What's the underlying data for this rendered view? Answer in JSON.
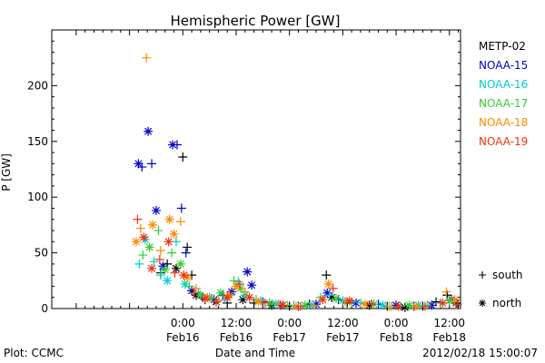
{
  "chart_data": {
    "type": "scatter",
    "title": "Hemispheric Power [GW]",
    "xlabel": "Date and Time",
    "ylabel": "P [GW]",
    "ylim": [
      0,
      250
    ],
    "yticks": [
      0,
      50,
      100,
      150,
      200
    ],
    "xlim_hours_from_feb15_0000": [
      -5.5,
      86.5
    ],
    "xticks": [
      {
        "hour": 24,
        "time": "0:00",
        "date": "Feb16"
      },
      {
        "hour": 36,
        "time": "12:00",
        "date": "Feb16"
      },
      {
        "hour": 48,
        "time": "0:00",
        "date": "Feb17"
      },
      {
        "hour": 60,
        "time": "12:00",
        "date": "Feb17"
      },
      {
        "hour": 72,
        "time": "0:00",
        "date": "Feb18"
      },
      {
        "hour": 84,
        "time": "12:00",
        "date": "Feb18"
      }
    ],
    "marker_legend": [
      {
        "symbol": "+",
        "label": "south"
      },
      {
        "symbol": "*",
        "label": "north"
      }
    ],
    "series": [
      {
        "name": "METP-02",
        "color": "#000000",
        "points": [
          {
            "x": 19.0,
            "y": 32,
            "m": "+"
          },
          {
            "x": 20.5,
            "y": 40,
            "m": "+"
          },
          {
            "x": 22.5,
            "y": 36,
            "m": "*"
          },
          {
            "x": 24.0,
            "y": 136,
            "m": "+"
          },
          {
            "x": 25.0,
            "y": 55,
            "m": "+"
          },
          {
            "x": 26.0,
            "y": 30,
            "m": "+"
          },
          {
            "x": 27.0,
            "y": 12,
            "m": "*"
          },
          {
            "x": 29.0,
            "y": 8,
            "m": "+"
          },
          {
            "x": 31.5,
            "y": 6,
            "m": "*"
          },
          {
            "x": 34.0,
            "y": 5,
            "m": "+"
          },
          {
            "x": 37.5,
            "y": 8,
            "m": "*"
          },
          {
            "x": 40.0,
            "y": 5,
            "m": "+"
          },
          {
            "x": 44.0,
            "y": 3,
            "m": "*"
          },
          {
            "x": 48.0,
            "y": 2,
            "m": "+"
          },
          {
            "x": 52.5,
            "y": 4,
            "m": "+"
          },
          {
            "x": 56.3,
            "y": 30,
            "m": "+"
          },
          {
            "x": 57.5,
            "y": 10,
            "m": "*"
          },
          {
            "x": 61.0,
            "y": 5,
            "m": "+"
          },
          {
            "x": 66.0,
            "y": 3,
            "m": "*"
          },
          {
            "x": 70.0,
            "y": 2,
            "m": "+"
          },
          {
            "x": 74.0,
            "y": 1,
            "m": "*"
          },
          {
            "x": 78.0,
            "y": 2,
            "m": "+"
          },
          {
            "x": 81.0,
            "y": 6,
            "m": "+"
          },
          {
            "x": 83.5,
            "y": 12,
            "m": "+"
          },
          {
            "x": 85.5,
            "y": 5,
            "m": "*"
          }
        ]
      },
      {
        "name": "NOAA-15",
        "color": "#0000cc",
        "points": [
          {
            "x": 14.0,
            "y": 130,
            "m": "*"
          },
          {
            "x": 14.8,
            "y": 127,
            "m": "+"
          },
          {
            "x": 16.2,
            "y": 159,
            "m": "*"
          },
          {
            "x": 17.0,
            "y": 130,
            "m": "+"
          },
          {
            "x": 18.0,
            "y": 88,
            "m": "*"
          },
          {
            "x": 19.5,
            "y": 38,
            "m": "*"
          },
          {
            "x": 21.7,
            "y": 147,
            "m": "*"
          },
          {
            "x": 22.7,
            "y": 147,
            "m": "+"
          },
          {
            "x": 23.7,
            "y": 90,
            "m": "+"
          },
          {
            "x": 24.7,
            "y": 50,
            "m": "+"
          },
          {
            "x": 26.0,
            "y": 16,
            "m": "*"
          },
          {
            "x": 28.5,
            "y": 10,
            "m": "+"
          },
          {
            "x": 31.0,
            "y": 8,
            "m": "*"
          },
          {
            "x": 33.0,
            "y": 12,
            "m": "+"
          },
          {
            "x": 35.0,
            "y": 15,
            "m": "*"
          },
          {
            "x": 38.5,
            "y": 33,
            "m": "*"
          },
          {
            "x": 39.5,
            "y": 21,
            "m": "*"
          },
          {
            "x": 42.0,
            "y": 6,
            "m": "+"
          },
          {
            "x": 46.0,
            "y": 3,
            "m": "*"
          },
          {
            "x": 50.0,
            "y": 2,
            "m": "+"
          },
          {
            "x": 54.0,
            "y": 4,
            "m": "*"
          },
          {
            "x": 56.5,
            "y": 14,
            "m": "*"
          },
          {
            "x": 59.0,
            "y": 8,
            "m": "+"
          },
          {
            "x": 63.0,
            "y": 5,
            "m": "*"
          },
          {
            "x": 68.0,
            "y": 4,
            "m": "+"
          },
          {
            "x": 72.0,
            "y": 3,
            "m": "*"
          },
          {
            "x": 76.0,
            "y": 2,
            "m": "+"
          },
          {
            "x": 80.0,
            "y": 3,
            "m": "*"
          },
          {
            "x": 84.5,
            "y": 8,
            "m": "*"
          }
        ]
      },
      {
        "name": "NOAA-16",
        "color": "#00cccc",
        "points": [
          {
            "x": 14.2,
            "y": 40,
            "m": "+"
          },
          {
            "x": 15.5,
            "y": 62,
            "m": "*"
          },
          {
            "x": 17.5,
            "y": 42,
            "m": "+"
          },
          {
            "x": 19.0,
            "y": 30,
            "m": "+"
          },
          {
            "x": 20.5,
            "y": 25,
            "m": "*"
          },
          {
            "x": 22.5,
            "y": 60,
            "m": "+"
          },
          {
            "x": 24.5,
            "y": 22,
            "m": "*"
          },
          {
            "x": 27.5,
            "y": 14,
            "m": "+"
          },
          {
            "x": 30.0,
            "y": 10,
            "m": "*"
          },
          {
            "x": 33.5,
            "y": 8,
            "m": "+"
          },
          {
            "x": 36.5,
            "y": 24,
            "m": "+"
          },
          {
            "x": 38.0,
            "y": 12,
            "m": "*"
          },
          {
            "x": 41.5,
            "y": 7,
            "m": "+"
          },
          {
            "x": 45.0,
            "y": 4,
            "m": "*"
          },
          {
            "x": 49.0,
            "y": 3,
            "m": "+"
          },
          {
            "x": 53.0,
            "y": 3,
            "m": "*"
          },
          {
            "x": 57.0,
            "y": 12,
            "m": "+"
          },
          {
            "x": 60.0,
            "y": 7,
            "m": "*"
          },
          {
            "x": 64.0,
            "y": 5,
            "m": "+"
          },
          {
            "x": 69.0,
            "y": 3,
            "m": "*"
          },
          {
            "x": 73.0,
            "y": 2,
            "m": "+"
          },
          {
            "x": 77.0,
            "y": 3,
            "m": "*"
          },
          {
            "x": 82.0,
            "y": 5,
            "m": "+"
          },
          {
            "x": 85.0,
            "y": 6,
            "m": "+"
          }
        ]
      },
      {
        "name": "NOAA-17",
        "color": "#33cc33",
        "points": [
          {
            "x": 15.0,
            "y": 48,
            "m": "+"
          },
          {
            "x": 16.5,
            "y": 55,
            "m": "*"
          },
          {
            "x": 18.5,
            "y": 70,
            "m": "+"
          },
          {
            "x": 20.0,
            "y": 35,
            "m": "*"
          },
          {
            "x": 21.5,
            "y": 50,
            "m": "+"
          },
          {
            "x": 23.5,
            "y": 40,
            "m": "*"
          },
          {
            "x": 25.5,
            "y": 20,
            "m": "+"
          },
          {
            "x": 28.0,
            "y": 12,
            "m": "*"
          },
          {
            "x": 30.5,
            "y": 9,
            "m": "+"
          },
          {
            "x": 32.5,
            "y": 14,
            "m": "*"
          },
          {
            "x": 35.5,
            "y": 25,
            "m": "+"
          },
          {
            "x": 37.0,
            "y": 18,
            "m": "*"
          },
          {
            "x": 40.5,
            "y": 8,
            "m": "+"
          },
          {
            "x": 43.5,
            "y": 5,
            "m": "*"
          },
          {
            "x": 47.5,
            "y": 3,
            "m": "+"
          },
          {
            "x": 51.5,
            "y": 3,
            "m": "*"
          },
          {
            "x": 55.0,
            "y": 10,
            "m": "+"
          },
          {
            "x": 58.5,
            "y": 9,
            "m": "*"
          },
          {
            "x": 62.0,
            "y": 6,
            "m": "+"
          },
          {
            "x": 67.0,
            "y": 4,
            "m": "*"
          },
          {
            "x": 71.0,
            "y": 2,
            "m": "+"
          },
          {
            "x": 75.0,
            "y": 3,
            "m": "*"
          },
          {
            "x": 79.0,
            "y": 3,
            "m": "+"
          },
          {
            "x": 84.0,
            "y": 7,
            "m": "*"
          }
        ]
      },
      {
        "name": "NOAA-18",
        "color": "#ff8800",
        "points": [
          {
            "x": 13.5,
            "y": 60,
            "m": "*"
          },
          {
            "x": 14.5,
            "y": 72,
            "m": "+"
          },
          {
            "x": 15.8,
            "y": 225,
            "m": "+"
          },
          {
            "x": 17.2,
            "y": 75,
            "m": "*"
          },
          {
            "x": 19.0,
            "y": 52,
            "m": "+"
          },
          {
            "x": 21.0,
            "y": 80,
            "m": "*"
          },
          {
            "x": 22.0,
            "y": 67,
            "m": "*"
          },
          {
            "x": 23.5,
            "y": 78,
            "m": "+"
          },
          {
            "x": 25.0,
            "y": 28,
            "m": "*"
          },
          {
            "x": 27.0,
            "y": 18,
            "m": "+"
          },
          {
            "x": 29.5,
            "y": 10,
            "m": "*"
          },
          {
            "x": 32.0,
            "y": 7,
            "m": "+"
          },
          {
            "x": 34.5,
            "y": 12,
            "m": "*"
          },
          {
            "x": 36.0,
            "y": 20,
            "m": "*"
          },
          {
            "x": 38.0,
            "y": 15,
            "m": "+"
          },
          {
            "x": 41.0,
            "y": 6,
            "m": "*"
          },
          {
            "x": 45.5,
            "y": 4,
            "m": "+"
          },
          {
            "x": 49.5,
            "y": 2,
            "m": "*"
          },
          {
            "x": 53.5,
            "y": 3,
            "m": "+"
          },
          {
            "x": 56.8,
            "y": 22,
            "m": "*"
          },
          {
            "x": 60.5,
            "y": 6,
            "m": "+"
          },
          {
            "x": 65.0,
            "y": 4,
            "m": "*"
          },
          {
            "x": 70.5,
            "y": 2,
            "m": "+"
          },
          {
            "x": 76.5,
            "y": 2,
            "m": "*"
          },
          {
            "x": 83.3,
            "y": 15,
            "m": "+"
          },
          {
            "x": 85.2,
            "y": 8,
            "m": "*"
          }
        ]
      },
      {
        "name": "NOAA-19",
        "color": "#ee3311",
        "points": [
          {
            "x": 13.8,
            "y": 80,
            "m": "+"
          },
          {
            "x": 15.2,
            "y": 64,
            "m": "*"
          },
          {
            "x": 17.0,
            "y": 36,
            "m": "*"
          },
          {
            "x": 18.8,
            "y": 44,
            "m": "+"
          },
          {
            "x": 20.8,
            "y": 60,
            "m": "*"
          },
          {
            "x": 22.2,
            "y": 32,
            "m": "+"
          },
          {
            "x": 24.2,
            "y": 30,
            "m": "*"
          },
          {
            "x": 26.5,
            "y": 14,
            "m": "+"
          },
          {
            "x": 29.0,
            "y": 9,
            "m": "*"
          },
          {
            "x": 31.5,
            "y": 6,
            "m": "+"
          },
          {
            "x": 34.0,
            "y": 10,
            "m": "*"
          },
          {
            "x": 36.8,
            "y": 22,
            "m": "+"
          },
          {
            "x": 39.0,
            "y": 10,
            "m": "*"
          },
          {
            "x": 42.5,
            "y": 5,
            "m": "+"
          },
          {
            "x": 46.5,
            "y": 3,
            "m": "*"
          },
          {
            "x": 50.5,
            "y": 2,
            "m": "+"
          },
          {
            "x": 55.5,
            "y": 8,
            "m": "*"
          },
          {
            "x": 57.8,
            "y": 18,
            "m": "+"
          },
          {
            "x": 61.5,
            "y": 7,
            "m": "*"
          },
          {
            "x": 66.5,
            "y": 4,
            "m": "+"
          },
          {
            "x": 72.5,
            "y": 2,
            "m": "*"
          },
          {
            "x": 78.5,
            "y": 2,
            "m": "+"
          },
          {
            "x": 82.5,
            "y": 5,
            "m": "*"
          },
          {
            "x": 85.8,
            "y": 4,
            "m": "+"
          }
        ]
      }
    ]
  },
  "footer": {
    "left": "Plot: CCMC",
    "center": "Date and Time",
    "right": "2012/02/18 15:00:07"
  }
}
